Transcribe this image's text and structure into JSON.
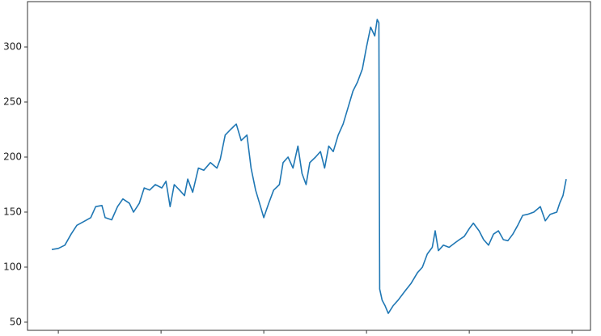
{
  "chart_data": {
    "type": "line",
    "x": [
      -16,
      0,
      16,
      31,
      45,
      65,
      79,
      91,
      106,
      114,
      130,
      144,
      157,
      173,
      183,
      197,
      209,
      222,
      236,
      252,
      262,
      272,
      282,
      295,
      307,
      315,
      327,
      341,
      354,
      370,
      386,
      394,
      406,
      419,
      433,
      445,
      459,
      469,
      480,
      492,
      500,
      512,
      524,
      538,
      547,
      559,
      571,
      583,
      593,
      603,
      612,
      626,
      638,
      648,
      658,
      669,
      681,
      693,
      705,
      717,
      728,
      740,
      750,
      760,
      770,
      776,
      780,
      782,
      788,
      795,
      803,
      815,
      827,
      843,
      858,
      874,
      886,
      898,
      910,
      917,
      925,
      937,
      951,
      965,
      976,
      988,
      1000,
      1010,
      1024,
      1035,
      1047,
      1059,
      1071,
      1083,
      1094,
      1106,
      1118,
      1130,
      1142,
      1157,
      1173,
      1185,
      1197,
      1213,
      1220,
      1228,
      1236
    ],
    "series": [
      {
        "color": "#1f77b4",
        "values": [
          116,
          117,
          120,
          130,
          138,
          142,
          145,
          155,
          156,
          145,
          143,
          155,
          162,
          158,
          150,
          158,
          172,
          170,
          175,
          172,
          178,
          155,
          175,
          170,
          165,
          180,
          168,
          190,
          188,
          195,
          190,
          198,
          220,
          225,
          230,
          215,
          220,
          190,
          170,
          155,
          145,
          158,
          170,
          175,
          195,
          200,
          190,
          210,
          185,
          175,
          195,
          200,
          205,
          190,
          210,
          205,
          220,
          230,
          245,
          260,
          268,
          280,
          300,
          318,
          310,
          325,
          322,
          80,
          70,
          65,
          58,
          65,
          70,
          78,
          85,
          95,
          100,
          112,
          118,
          133,
          115,
          120,
          118,
          122,
          125,
          128,
          135,
          140,
          133,
          125,
          120,
          130,
          133,
          125,
          124,
          130,
          138,
          147,
          148,
          150,
          155,
          142,
          148,
          150,
          158,
          165,
          180
        ]
      }
    ],
    "xlim": [
      -75,
      1295
    ],
    "xticks": [
      0,
      250,
      500,
      750,
      1000,
      1250
    ],
    "ylim": [
      42.6,
      341.2
    ],
    "yticks": [
      50,
      100,
      150,
      200,
      250,
      300
    ]
  }
}
